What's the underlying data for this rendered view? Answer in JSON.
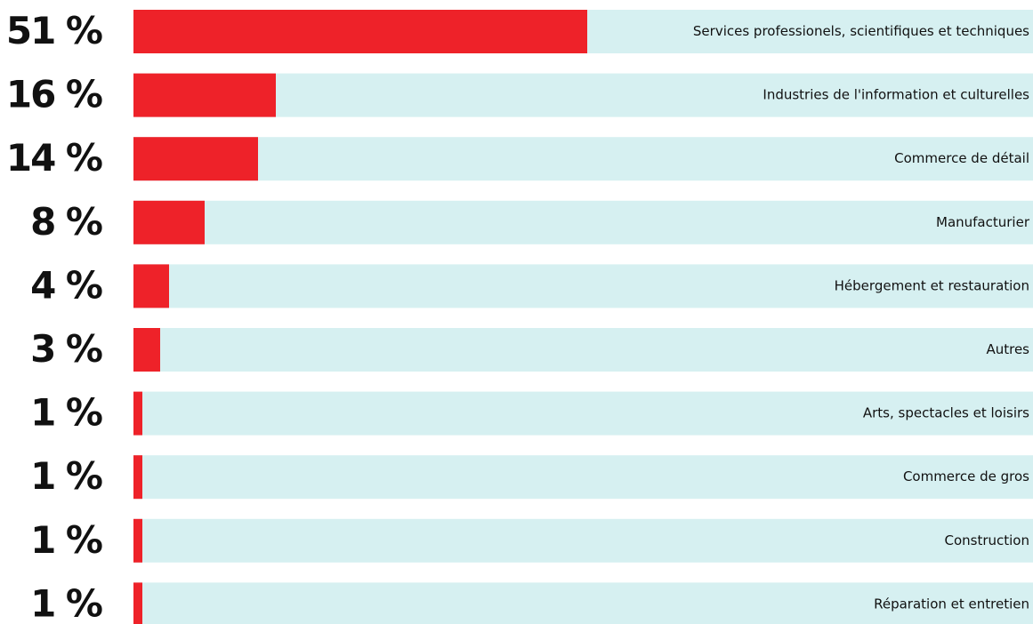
{
  "chart_data": {
    "type": "bar",
    "orientation": "horizontal",
    "categories": [
      "Services professionels, scientifiques et techniques",
      "Industries de l'information et culturelles",
      "Commerce de détail",
      "Manufacturier",
      "Hébergement et restauration",
      "Autres",
      "Arts, spectacles et loisirs",
      "Commerce de gros",
      "Construction",
      "Réparation et entretien"
    ],
    "values": [
      51,
      16,
      14,
      8,
      4,
      3,
      1,
      1,
      1,
      1
    ],
    "value_labels": [
      "51 %",
      "16 %",
      "14 %",
      "8 %",
      "4 %",
      "3 %",
      "1 %",
      "1 %",
      "1 %",
      "1 %"
    ],
    "color": "#ee2229",
    "track_color": "#d6f0f1",
    "xlim": [
      0,
      100
    ]
  }
}
